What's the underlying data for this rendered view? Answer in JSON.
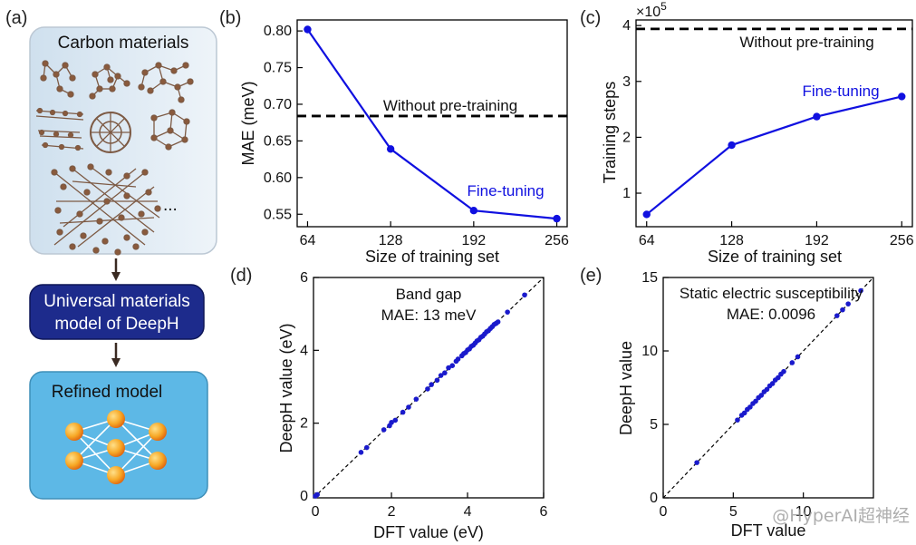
{
  "panel_labels": [
    "(a)",
    "(b)",
    "(c)",
    "(d)",
    "(e)"
  ],
  "panel_a": {
    "top_box_title": "Carbon materials",
    "ellipsis": "...",
    "middle_box_lines": [
      "Universal materials",
      "model of DeepH"
    ],
    "bottom_box_title": "Refined model",
    "colors": {
      "top_box": "#dbe8f3",
      "middle_box": "#1d2b8c",
      "bottom_box": "#5db8e6",
      "node": "#f5a623",
      "atom": "#8a5a3c"
    }
  },
  "watermark": "@HyperAI超神经",
  "chart_data": [
    {
      "panel": "(b)",
      "type": "line",
      "x": [
        64,
        128,
        192,
        256
      ],
      "series": [
        {
          "name": "Fine-tuning",
          "values": [
            0.802,
            0.639,
            0.555,
            0.544
          ],
          "color": "#1010e0"
        }
      ],
      "reference_lines": [
        {
          "label": "Without pre-training",
          "y": 0.684,
          "style": "dashed"
        }
      ],
      "xlabel": "Size of training set",
      "ylabel": "MAE (meV)",
      "xticks": [
        "64",
        "128",
        "192",
        "256"
      ],
      "yticks": [
        "0.55",
        "0.60",
        "0.65",
        "0.70",
        "0.75",
        "0.80"
      ],
      "ytick_values": [
        0.55,
        0.6,
        0.65,
        0.7,
        0.75,
        0.8
      ],
      "xlim": [
        56,
        264
      ],
      "ylim": [
        0.533,
        0.815
      ]
    },
    {
      "panel": "(c)",
      "type": "line",
      "x": [
        64,
        128,
        192,
        256
      ],
      "series": [
        {
          "name": "Fine-tuning",
          "values": [
            0.62,
            1.86,
            2.37,
            2.73
          ],
          "color": "#1010e0"
        }
      ],
      "reference_lines": [
        {
          "label": "Without pre-training",
          "y": 3.94,
          "style": "dashed"
        }
      ],
      "multiplier_label": "×10",
      "multiplier_exponent": "5",
      "xlabel": "Size of training set",
      "ylabel": "Training steps",
      "xticks": [
        "64",
        "128",
        "192",
        "256"
      ],
      "yticks": [
        "1",
        "2",
        "3",
        "4"
      ],
      "ytick_values": [
        1,
        2,
        3,
        4
      ],
      "xlim": [
        56,
        264
      ],
      "ylim": [
        0.4,
        4.1
      ]
    },
    {
      "panel": "(d)",
      "type": "scatter",
      "title_lines": [
        "Band gap",
        "MAE: 13 meV"
      ],
      "xlabel": "DFT value (eV)",
      "ylabel": "DeepH value (eV)",
      "xticks": [
        "0",
        "2",
        "4",
        "6"
      ],
      "yticks": [
        "0",
        "2",
        "4",
        "6"
      ],
      "tick_values": [
        0,
        2,
        4,
        6
      ],
      "xlim": [
        -0.05,
        6.0
      ],
      "ylim": [
        -0.05,
        6.0
      ],
      "diagonal": true,
      "points": [
        [
          0.0,
          0.0
        ],
        [
          0.05,
          0.04
        ],
        [
          1.2,
          1.2
        ],
        [
          1.35,
          1.33
        ],
        [
          1.8,
          1.82
        ],
        [
          1.95,
          1.93
        ],
        [
          2.0,
          2.02
        ],
        [
          2.1,
          2.08
        ],
        [
          2.3,
          2.3
        ],
        [
          2.45,
          2.44
        ],
        [
          2.65,
          2.66
        ],
        [
          2.95,
          2.94
        ],
        [
          3.05,
          3.06
        ],
        [
          3.2,
          3.18
        ],
        [
          3.3,
          3.31
        ],
        [
          3.4,
          3.38
        ],
        [
          3.5,
          3.52
        ],
        [
          3.6,
          3.58
        ],
        [
          3.7,
          3.7
        ],
        [
          3.75,
          3.76
        ],
        [
          3.85,
          3.85
        ],
        [
          3.9,
          3.91
        ],
        [
          3.95,
          3.94
        ],
        [
          4.0,
          4.01
        ],
        [
          4.05,
          4.04
        ],
        [
          4.1,
          4.11
        ],
        [
          4.15,
          4.14
        ],
        [
          4.2,
          4.2
        ],
        [
          4.25,
          4.26
        ],
        [
          4.3,
          4.29
        ],
        [
          4.35,
          4.36
        ],
        [
          4.4,
          4.39
        ],
        [
          4.45,
          4.45
        ],
        [
          4.5,
          4.51
        ],
        [
          4.55,
          4.54
        ],
        [
          4.6,
          4.6
        ],
        [
          4.65,
          4.65
        ],
        [
          4.7,
          4.71
        ],
        [
          4.75,
          4.74
        ],
        [
          4.8,
          4.78
        ],
        [
          5.05,
          5.05
        ],
        [
          5.5,
          5.52
        ]
      ],
      "point_color": "#1a1acc"
    },
    {
      "panel": "(e)",
      "type": "scatter",
      "title_lines": [
        "Static electric susceptibility",
        "MAE: 0.0096"
      ],
      "xlabel": "DFT value",
      "ylabel": "DeepH value",
      "xticks": [
        "0",
        "5",
        "10"
      ],
      "yticks": [
        "0",
        "5",
        "10",
        "15"
      ],
      "xtick_values": [
        0,
        5,
        10
      ],
      "ytick_values": [
        0,
        5,
        10,
        15
      ],
      "xlim": [
        0,
        15
      ],
      "ylim": [
        0,
        15
      ],
      "diagonal": true,
      "points": [
        [
          2.4,
          2.4
        ],
        [
          5.3,
          5.3
        ],
        [
          5.6,
          5.62
        ],
        [
          5.8,
          5.78
        ],
        [
          6.0,
          6.02
        ],
        [
          6.2,
          6.18
        ],
        [
          6.4,
          6.42
        ],
        [
          6.6,
          6.58
        ],
        [
          6.8,
          6.82
        ],
        [
          7.0,
          6.98
        ],
        [
          7.2,
          7.22
        ],
        [
          7.4,
          7.38
        ],
        [
          7.6,
          7.62
        ],
        [
          7.8,
          7.78
        ],
        [
          8.0,
          8.02
        ],
        [
          8.2,
          8.18
        ],
        [
          8.4,
          8.42
        ],
        [
          8.6,
          8.6
        ],
        [
          9.2,
          9.2
        ],
        [
          9.6,
          9.6
        ],
        [
          12.4,
          12.4
        ],
        [
          12.8,
          12.8
        ],
        [
          13.2,
          13.2
        ],
        [
          14.1,
          14.1
        ]
      ],
      "point_color": "#1a1acc"
    }
  ]
}
